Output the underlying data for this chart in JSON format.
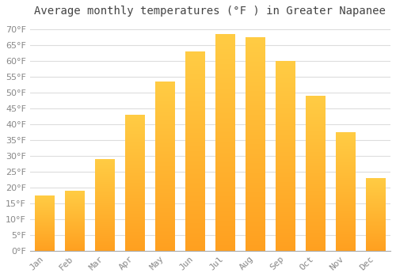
{
  "title": "Average monthly temperatures (°F ) in Greater Napanee",
  "months": [
    "Jan",
    "Feb",
    "Mar",
    "Apr",
    "May",
    "Jun",
    "Jul",
    "Aug",
    "Sep",
    "Oct",
    "Nov",
    "Dec"
  ],
  "values": [
    17.5,
    19.0,
    29.0,
    43.0,
    53.5,
    63.0,
    68.5,
    67.5,
    60.0,
    49.0,
    37.5,
    23.0
  ],
  "bar_color_top": "#FFCC44",
  "bar_color_bottom": "#FFA020",
  "background_color": "#FFFFFF",
  "grid_color": "#DDDDDD",
  "text_color": "#888888",
  "title_color": "#444444",
  "ylim": [
    0,
    72
  ],
  "yticks": [
    0,
    5,
    10,
    15,
    20,
    25,
    30,
    35,
    40,
    45,
    50,
    55,
    60,
    65,
    70
  ],
  "title_fontsize": 10,
  "tick_fontsize": 8,
  "bar_width": 0.65
}
